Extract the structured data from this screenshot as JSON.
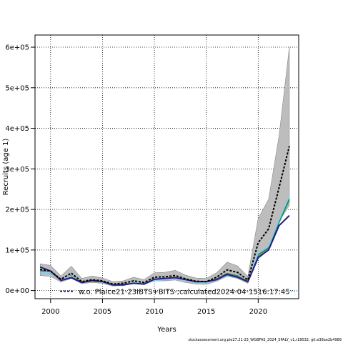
{
  "chart_data": {
    "type": "line",
    "xlabel": "Years",
    "ylabel": "Recruits (age 1)",
    "xlim": [
      1998.5,
      2023.9
    ],
    "ylim": [
      -20000,
      630000
    ],
    "x_ticks": [
      2000,
      2005,
      2010,
      2015,
      2020
    ],
    "x_tick_labels": [
      "2000",
      "2005",
      "2010",
      "2015",
      "2020"
    ],
    "y_ticks": [
      0,
      100000,
      200000,
      300000,
      400000,
      500000,
      600000
    ],
    "y_tick_labels": [
      "0e+00",
      "1e+05",
      "2e+05",
      "3e+05",
      "4e+05",
      "5e+05",
      "6e+05"
    ],
    "grid": true,
    "x": [
      1999,
      2000,
      2001,
      2002,
      2003,
      2004,
      2005,
      2006,
      2007,
      2008,
      2009,
      2010,
      2011,
      2012,
      2013,
      2014,
      2015,
      2016,
      2017,
      2018,
      2019,
      2020,
      2021,
      2022,
      2023
    ],
    "series": [
      {
        "name": "w.o. Plaice21-23IBTS+BITS-;calculated2024-04-1516:17:45",
        "values": [
          52000,
          48000,
          28000,
          43000,
          22000,
          27000,
          24000,
          16000,
          18000,
          24000,
          20000,
          33000,
          34000,
          37000,
          29000,
          23000,
          22000,
          33000,
          51000,
          45000,
          26000,
          118000,
          152000,
          253000,
          356000
        ],
        "lower": [
          37000,
          35000,
          21000,
          30000,
          17000,
          20000,
          18000,
          11000,
          13000,
          17000,
          15000,
          24000,
          24000,
          26000,
          20000,
          16000,
          15000,
          23000,
          35000,
          30000,
          18000,
          78000,
          100000,
          170000,
          210000
        ],
        "upper": [
          66000,
          62000,
          36000,
          60000,
          30000,
          36000,
          31000,
          22000,
          24000,
          33000,
          27000,
          44000,
          45000,
          50000,
          38000,
          31000,
          30000,
          44000,
          70000,
          61000,
          35000,
          178000,
          225000,
          380000,
          600000
        ],
        "color": "#000000",
        "style": "dashed"
      },
      {
        "name": "",
        "values": [
          58000,
          48000,
          25000,
          32000,
          20000,
          25000,
          22000,
          14000,
          14000,
          18000,
          16000,
          28000,
          30000,
          32000,
          27000,
          22000,
          22000,
          27000,
          40000,
          33000,
          22000,
          82000,
          100000,
          160000,
          185000
        ],
        "color": "#2a1a7a",
        "style": "solid"
      },
      {
        "name": "",
        "values": [
          45000,
          45000,
          26000,
          41000,
          21000,
          26000,
          20000,
          13000,
          13000,
          20000,
          16000,
          25000,
          27000,
          30000,
          25000,
          21000,
          20000,
          26000,
          38000,
          32000,
          22000,
          95000,
          110000,
          175000,
          235000
        ],
        "color": "#87ceeb",
        "style": "solid"
      },
      {
        "name": "",
        "values": [
          50000,
          44000,
          27000,
          40000,
          20000,
          24000,
          21000,
          14000,
          15000,
          19000,
          17000,
          27000,
          28000,
          31000,
          26000,
          21000,
          21000,
          28000,
          42000,
          36000,
          22000,
          88000,
          105000,
          168000,
          225000
        ],
        "color": "#2e8b57",
        "style": "solid"
      }
    ],
    "legend": {
      "position": "bottom",
      "label": "w.o. Plaice21-23IBTS+BITS-;calculated2024-04-1516:17:45"
    },
    "footer": "stockassessment.org.ple27.21-23_WGBFAS_2024_SPALY_v1,r18032, git:e38ae2b4989"
  }
}
